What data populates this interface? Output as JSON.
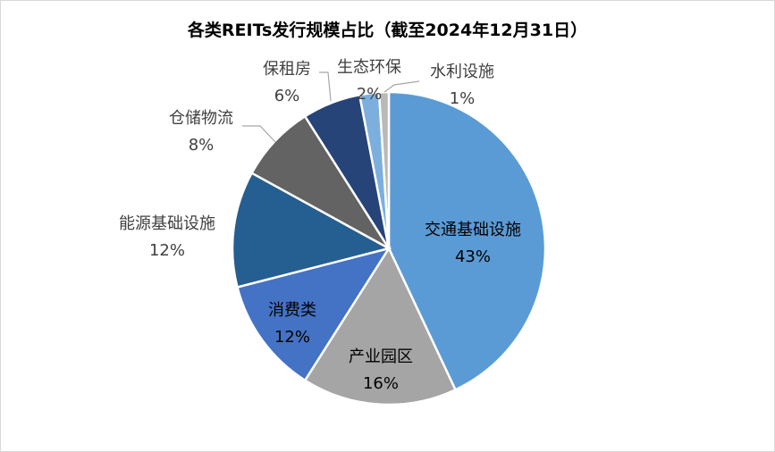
{
  "chart_data": {
    "type": "pie",
    "title": "各类REITs发行规模占比（截至2024年12月31日）",
    "unit": "%",
    "start": "12 o'clock, clockwise",
    "slices": [
      {
        "label": "交通基础设施",
        "value": 43,
        "display": "43%",
        "color": "#5b9bd5"
      },
      {
        "label": "产业园区",
        "value": 16,
        "display": "16%",
        "color": "#a5a5a5"
      },
      {
        "label": "消费类",
        "value": 12,
        "display": "12%",
        "color": "#4472c4"
      },
      {
        "label": "能源基础设施",
        "value": 12,
        "display": "12%",
        "color": "#255e91"
      },
      {
        "label": "仓储物流",
        "value": 8,
        "display": "8%",
        "color": "#636363"
      },
      {
        "label": "保租房",
        "value": 6,
        "display": "6%",
        "color": "#264478"
      },
      {
        "label": "生态环保",
        "value": 2,
        "display": "2%",
        "color": "#7cafdd"
      },
      {
        "label": "水利设施",
        "value": 1,
        "display": "1%",
        "color": "#b9b9b9"
      }
    ]
  }
}
